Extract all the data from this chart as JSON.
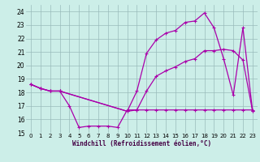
{
  "bg_color": "#cceee8",
  "line_color": "#aa00aa",
  "grid_color": "#99bbbb",
  "xlabel": "Windchill (Refroidissement éolien,°C)",
  "xlim": [
    -0.5,
    23.5
  ],
  "ylim": [
    15,
    24.5
  ],
  "yticks": [
    15,
    16,
    17,
    18,
    19,
    20,
    21,
    22,
    23,
    24
  ],
  "xticks": [
    0,
    1,
    2,
    3,
    4,
    5,
    6,
    7,
    8,
    9,
    10,
    11,
    12,
    13,
    14,
    15,
    16,
    17,
    18,
    19,
    20,
    21,
    22,
    23
  ],
  "line1_x": [
    0,
    1,
    2,
    3,
    10,
    11,
    12,
    13,
    14,
    15,
    16,
    17,
    18,
    19,
    20,
    21,
    22,
    23
  ],
  "line1_y": [
    18.6,
    18.3,
    18.1,
    18.1,
    16.6,
    18.1,
    20.9,
    21.9,
    22.4,
    22.6,
    23.2,
    23.3,
    23.9,
    22.8,
    20.5,
    17.8,
    22.8,
    16.6
  ],
  "line2_x": [
    0,
    1,
    2,
    3,
    4,
    5,
    6,
    7,
    8,
    9,
    10,
    11,
    12,
    13,
    14,
    15,
    16,
    17,
    18,
    19,
    20,
    21,
    22,
    23
  ],
  "line2_y": [
    18.6,
    18.3,
    18.1,
    18.1,
    17.0,
    15.4,
    15.5,
    15.5,
    15.5,
    15.4,
    16.7,
    16.7,
    16.7,
    16.7,
    16.7,
    16.7,
    16.7,
    16.7,
    16.7,
    16.7,
    16.7,
    16.7,
    16.7,
    16.7
  ],
  "line3_x": [
    0,
    1,
    2,
    3,
    10,
    11,
    12,
    13,
    14,
    15,
    16,
    17,
    18,
    19,
    20,
    21,
    22,
    23
  ],
  "line3_y": [
    18.6,
    18.3,
    18.1,
    18.1,
    16.6,
    16.7,
    18.1,
    19.2,
    19.6,
    19.9,
    20.3,
    20.5,
    21.1,
    21.1,
    21.2,
    21.1,
    20.4,
    16.6
  ]
}
